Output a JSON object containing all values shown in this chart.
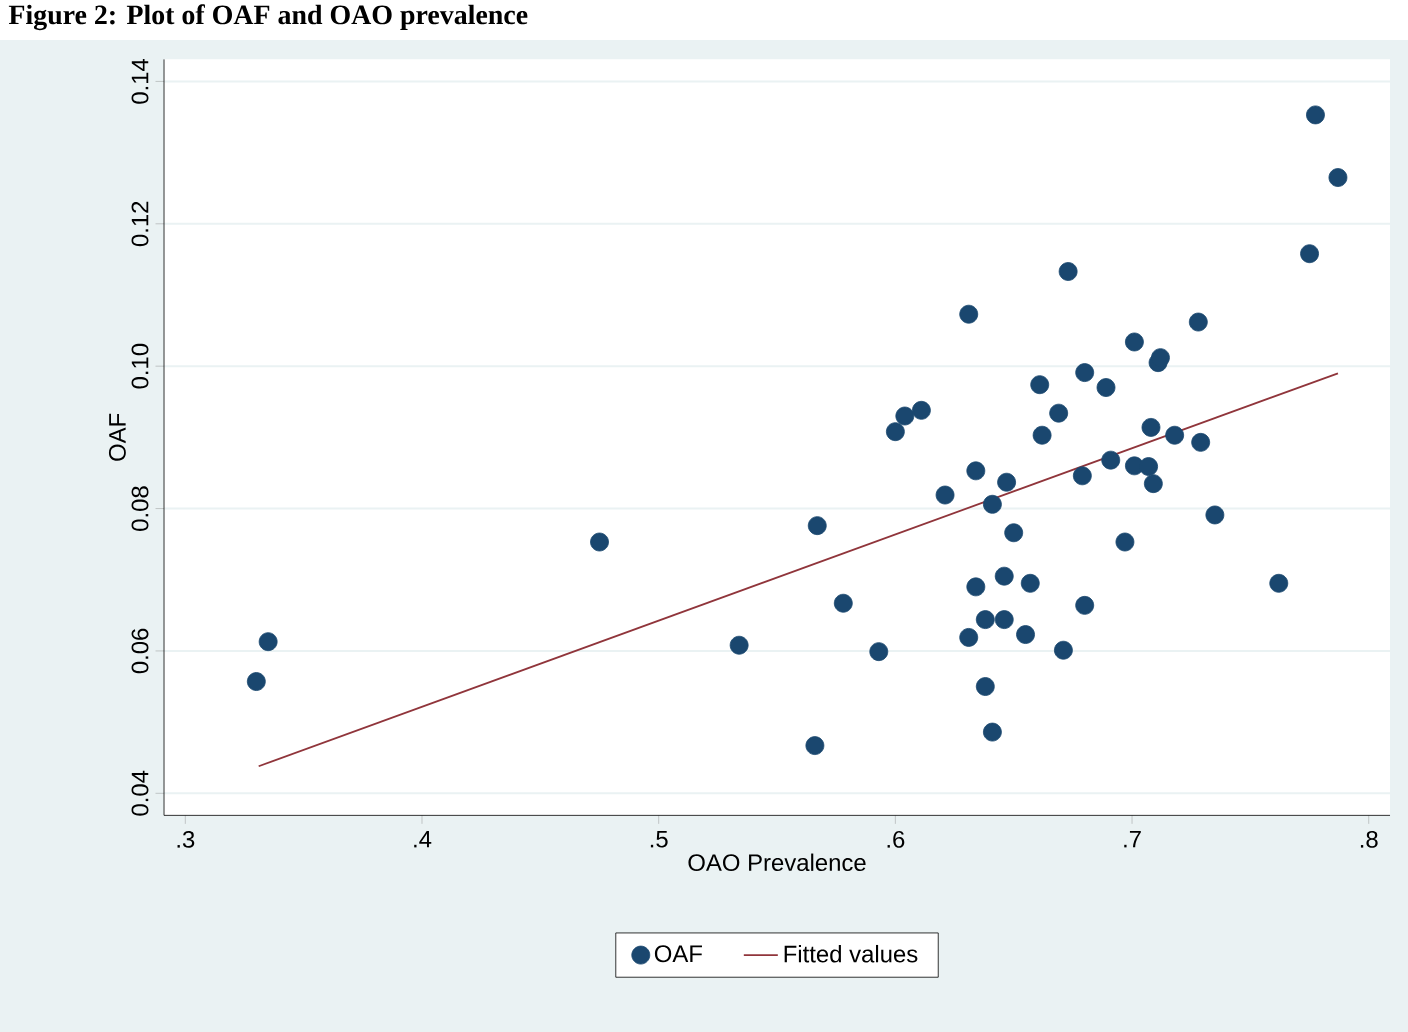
{
  "chart_data": {
    "type": "scatter",
    "title": "Figure 2: Plot of OAF and OAO prevalence",
    "xlabel": "OAO Prevalence",
    "ylabel": "OAF",
    "xlim": [
      0.291,
      0.809
    ],
    "ylim": [
      0.0369,
      0.1431
    ],
    "xticks": [
      {
        "value": 0.3,
        "label": ".3"
      },
      {
        "value": 0.4,
        "label": ".4"
      },
      {
        "value": 0.5,
        "label": ".5"
      },
      {
        "value": 0.6,
        "label": ".6"
      },
      {
        "value": 0.7,
        "label": ".7"
      },
      {
        "value": 0.8,
        "label": ".8"
      }
    ],
    "yticks": [
      {
        "value": 0.04,
        "label": "0.04"
      },
      {
        "value": 0.06,
        "label": "0.06"
      },
      {
        "value": 0.08,
        "label": "0.08"
      },
      {
        "value": 0.1,
        "label": "0.10"
      },
      {
        "value": 0.12,
        "label": "0.12"
      },
      {
        "value": 0.14,
        "label": "0.14"
      }
    ],
    "grid": "y",
    "legend": "bottom",
    "series": [
      {
        "name": "OAF",
        "marker": "circle",
        "color": "#1a476f",
        "x": [
          0.33,
          0.335,
          0.475,
          0.534,
          0.567,
          0.578,
          0.566,
          0.593,
          0.6,
          0.604,
          0.611,
          0.621,
          0.631,
          0.634,
          0.634,
          0.631,
          0.638,
          0.638,
          0.641,
          0.641,
          0.646,
          0.646,
          0.647,
          0.65,
          0.655,
          0.657,
          0.661,
          0.662,
          0.669,
          0.673,
          0.671,
          0.679,
          0.68,
          0.68,
          0.689,
          0.691,
          0.697,
          0.701,
          0.701,
          0.707,
          0.708,
          0.709,
          0.711,
          0.712,
          0.718,
          0.728,
          0.729,
          0.735,
          0.762,
          0.775,
          0.7775,
          0.787
        ],
        "values": [
          0.0557,
          0.0613,
          0.0753,
          0.0608,
          0.0776,
          0.0667,
          0.0467,
          0.0599,
          0.0908,
          0.093,
          0.0938,
          0.0819,
          0.1073,
          0.0853,
          0.069,
          0.0619,
          0.0644,
          0.055,
          0.0486,
          0.0806,
          0.0705,
          0.0644,
          0.0837,
          0.0766,
          0.0623,
          0.0695,
          0.0974,
          0.0903,
          0.0934,
          0.1133,
          0.0601,
          0.0846,
          0.0991,
          0.0664,
          0.097,
          0.0868,
          0.0753,
          0.086,
          0.1034,
          0.0859,
          0.0914,
          0.0835,
          0.1005,
          0.1012,
          0.0903,
          0.1062,
          0.0893,
          0.0791,
          0.0695,
          0.1158,
          0.1353,
          0.1265
        ]
      },
      {
        "name": "Fitted values",
        "type": "line",
        "marker": "none",
        "line_style": "solid",
        "color": "#90353b",
        "x": [
          0.331,
          0.787
        ],
        "values": [
          0.0438,
          0.099
        ]
      }
    ]
  }
}
